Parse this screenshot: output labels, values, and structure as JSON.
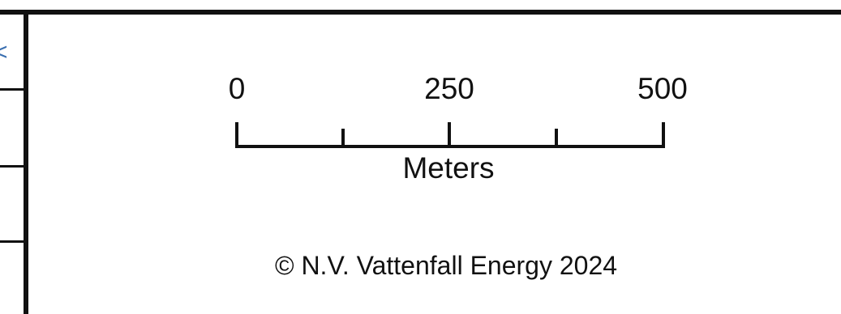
{
  "scale_bar": {
    "labels": [
      "0",
      "250",
      "500"
    ],
    "unit": "Meters",
    "max_value": 500
  },
  "copyright": "© N.V. Vattenfall Energy 2024",
  "colors": {
    "ink": "#111111",
    "background": "#ffffff"
  }
}
